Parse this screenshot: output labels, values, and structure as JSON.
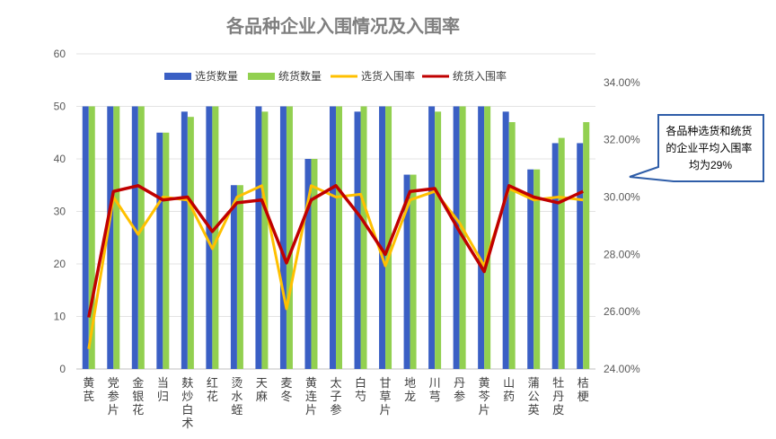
{
  "chart_data": {
    "type": "bar",
    "title": "各品种企业入围情况及入围率",
    "categories": [
      "黄芪",
      "党参片",
      "金银花",
      "当归",
      "麸炒白术",
      "红花",
      "烫水蛭",
      "天麻",
      "麦冬",
      "黄连片",
      "太子参",
      "白芍",
      "甘草片",
      "地龙",
      "川芎",
      "丹参",
      "黄芩片",
      "山药",
      "蒲公英",
      "牡丹皮",
      "桔梗"
    ],
    "y_left": {
      "min": 0,
      "max": 60,
      "ticks": [
        "0",
        "10",
        "20",
        "30",
        "40",
        "50",
        "60"
      ]
    },
    "y_right": {
      "min": 0.24,
      "max": 0.35,
      "ticks": [
        "24.00%",
        "26.00%",
        "28.00%",
        "30.00%",
        "32.00%",
        "34.00%"
      ]
    },
    "grid": true,
    "legend_position": "top",
    "series": [
      {
        "name": "选货数量",
        "kind": "bar",
        "axis": "left",
        "color": "#3a5fc4",
        "values": [
          50,
          50,
          50,
          45,
          49,
          50,
          35,
          50,
          50,
          40,
          50,
          49,
          50,
          37,
          50,
          50,
          50,
          49,
          38,
          43,
          43
        ]
      },
      {
        "name": "统货数量",
        "kind": "bar",
        "axis": "left",
        "color": "#92d050",
        "values": [
          50,
          50,
          50,
          45,
          48,
          50,
          35,
          49,
          50,
          40,
          50,
          50,
          50,
          37,
          49,
          50,
          50,
          47,
          38,
          44,
          47
        ]
      },
      {
        "name": "选货入围率",
        "kind": "line",
        "axis": "right",
        "color": "#ffc000",
        "values": [
          0.247,
          0.3,
          0.287,
          0.3,
          0.299,
          0.282,
          0.3,
          0.304,
          0.261,
          0.304,
          0.3,
          0.301,
          0.276,
          0.299,
          0.302,
          0.291,
          0.276,
          0.303,
          0.299,
          0.3,
          0.299
        ]
      },
      {
        "name": "统货入围率",
        "kind": "line",
        "axis": "right",
        "color": "#c00000",
        "values": [
          0.258,
          0.302,
          0.304,
          0.299,
          0.3,
          0.288,
          0.298,
          0.299,
          0.277,
          0.299,
          0.304,
          0.293,
          0.28,
          0.302,
          0.303,
          0.288,
          0.274,
          0.304,
          0.3,
          0.298,
          0.302
        ]
      }
    ],
    "annotation": "各品种选货和统货的企业平均入围率均为29%"
  }
}
